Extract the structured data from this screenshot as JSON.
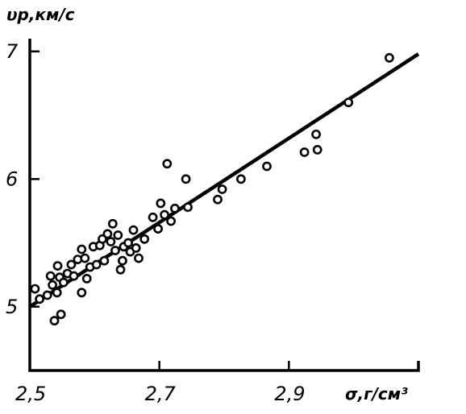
{
  "chart_data": {
    "type": "scatter",
    "xlabel": "σ,г/см³",
    "ylabel": "υp,км/с",
    "xlim": [
      2.5,
      3.1
    ],
    "ylim": [
      4.5,
      7.1
    ],
    "x_ticks": [
      2.5,
      2.7,
      2.9
    ],
    "x_tick_labels": [
      "2,5",
      "2,7",
      "2,9"
    ],
    "y_ticks": [
      5,
      6,
      7
    ],
    "y_tick_labels": [
      "5",
      "6",
      "7"
    ],
    "grid": false,
    "legend": false,
    "series": [
      {
        "points": [
          [
            2.508,
            5.14
          ],
          [
            2.515,
            5.06
          ],
          [
            2.527,
            5.09
          ],
          [
            2.532,
            5.24
          ],
          [
            2.535,
            5.17
          ],
          [
            2.538,
            4.89
          ],
          [
            2.542,
            5.11
          ],
          [
            2.543,
            5.32
          ],
          [
            2.546,
            5.23
          ],
          [
            2.548,
            4.94
          ],
          [
            2.552,
            5.19
          ],
          [
            2.558,
            5.26
          ],
          [
            2.564,
            5.33
          ],
          [
            2.568,
            5.24
          ],
          [
            2.574,
            5.37
          ],
          [
            2.58,
            5.45
          ],
          [
            2.58,
            5.11
          ],
          [
            2.585,
            5.38
          ],
          [
            2.588,
            5.22
          ],
          [
            2.593,
            5.31
          ],
          [
            2.598,
            5.47
          ],
          [
            2.603,
            5.33
          ],
          [
            2.608,
            5.48
          ],
          [
            2.612,
            5.53
          ],
          [
            2.615,
            5.36
          ],
          [
            2.62,
            5.57
          ],
          [
            2.625,
            5.51
          ],
          [
            2.628,
            5.65
          ],
          [
            2.632,
            5.44
          ],
          [
            2.636,
            5.56
          ],
          [
            2.64,
            5.29
          ],
          [
            2.643,
            5.36
          ],
          [
            2.645,
            5.47
          ],
          [
            2.652,
            5.5
          ],
          [
            2.655,
            5.43
          ],
          [
            2.66,
            5.6
          ],
          [
            2.664,
            5.46
          ],
          [
            2.668,
            5.38
          ],
          [
            2.677,
            5.53
          ],
          [
            2.69,
            5.7
          ],
          [
            2.698,
            5.61
          ],
          [
            2.702,
            5.81
          ],
          [
            2.708,
            5.72
          ],
          [
            2.712,
            6.12
          ],
          [
            2.718,
            5.67
          ],
          [
            2.724,
            5.77
          ],
          [
            2.741,
            6.0
          ],
          [
            2.744,
            5.78
          ],
          [
            2.79,
            5.84
          ],
          [
            2.797,
            5.92
          ],
          [
            2.826,
            6.0
          ],
          [
            2.866,
            6.1
          ],
          [
            2.924,
            6.21
          ],
          [
            2.942,
            6.35
          ],
          [
            2.944,
            6.23
          ],
          [
            2.992,
            6.6
          ],
          [
            3.055,
            6.95
          ]
        ]
      }
    ],
    "trend_line": {
      "x": [
        2.5,
        3.1
      ],
      "y": [
        5.0,
        6.98
      ]
    }
  }
}
